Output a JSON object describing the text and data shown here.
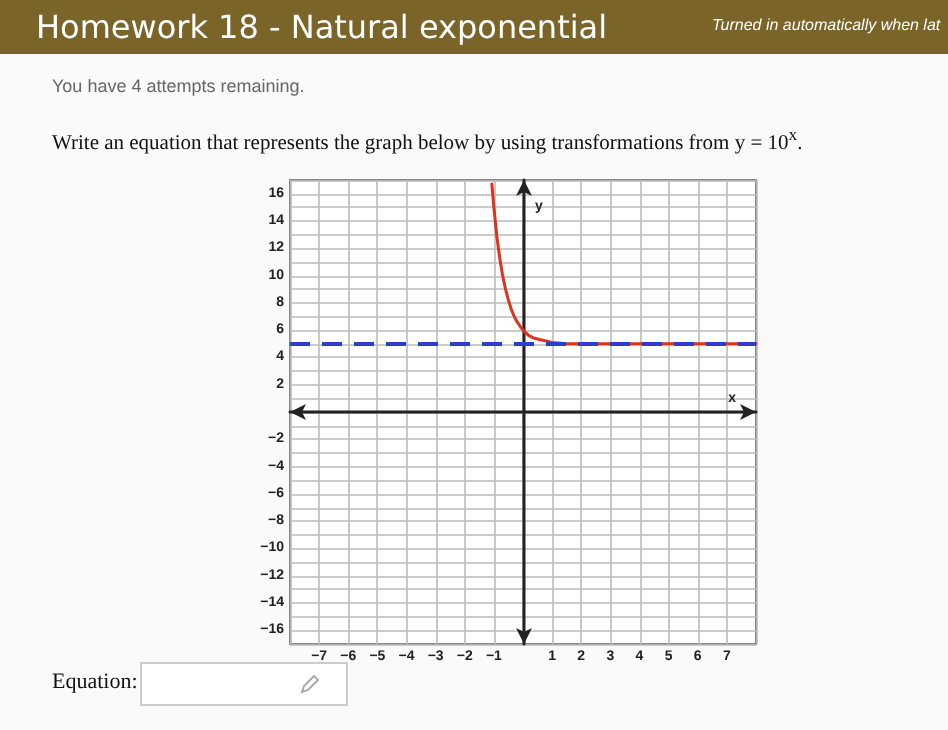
{
  "chart_data": {
    "type": "line",
    "title": "Homework 18 - Natural exponential",
    "subtitle": "You have 4 attempts remaining.",
    "annotations": [
      "Turned in automatically when lat",
      "Write an equation that represents the graph below by using transformations from y = 10$^{x}$.",
      "Equation:"
    ],
    "xlabel": "x",
    "ylabel": "y",
    "series": [
      {
        "color": "#e0301e",
        "x": [
          -1.07,
          -1.0,
          -0.9,
          -0.8,
          -0.7,
          -0.6,
          -0.5,
          -0.4,
          -0.3,
          -0.2,
          -0.1,
          0,
          0.2,
          0.4,
          0.6,
          1.0,
          1.5,
          2,
          3,
          5,
          8
        ],
        "values": [
          16.7,
          15,
          12.9,
          11.3,
          10.0,
          9.0,
          8.2,
          7.5,
          7.0,
          6.6,
          6.3,
          6.0,
          5.6,
          5.4,
          5.3,
          5.1,
          5.0,
          5.0,
          5.0,
          5.0,
          5.0
        ]
      }
    ],
    "xlim": [
      -8,
      8
    ],
    "ylim": [
      -17,
      17
    ],
    "xticks": [
      {
        "value": -8,
        "label": null
      },
      -7,
      -6,
      -5,
      -4,
      -3,
      -2,
      -1,
      {
        "value": 0,
        "label": null
      },
      1,
      2,
      3,
      4,
      5,
      6,
      7,
      {
        "value": 8,
        "label": null
      }
    ],
    "yticks": [
      {
        "value": -17,
        "label": null
      },
      -16,
      {
        "value": -15,
        "label": null
      },
      -14,
      {
        "value": -13,
        "label": null
      },
      -12,
      {
        "value": -11,
        "label": null
      },
      -10,
      {
        "value": -9,
        "label": null
      },
      -8,
      {
        "value": -7,
        "label": null
      },
      -6,
      {
        "value": -5,
        "label": null
      },
      -4,
      {
        "value": -3,
        "label": null
      },
      -2,
      {
        "value": -1,
        "label": null
      },
      {
        "value": 0,
        "label": null
      },
      {
        "value": 1,
        "label": null
      },
      2,
      {
        "value": 3,
        "label": null
      },
      4,
      {
        "value": 5,
        "label": null
      },
      6,
      {
        "value": 7,
        "label": null
      },
      8,
      {
        "value": 9,
        "label": null
      },
      10,
      {
        "value": 11,
        "label": null
      },
      12,
      {
        "value": 13,
        "label": null
      },
      14,
      {
        "value": 15,
        "label": null
      },
      16,
      {
        "value": 17,
        "label": null
      }
    ],
    "grid": true,
    "marker": "none",
    "line_style": "solid",
    "ref_lines": [
      {
        "axis": "y",
        "value": 5,
        "color": "#2a3fcf",
        "line_style": "dashed"
      }
    ]
  }
}
